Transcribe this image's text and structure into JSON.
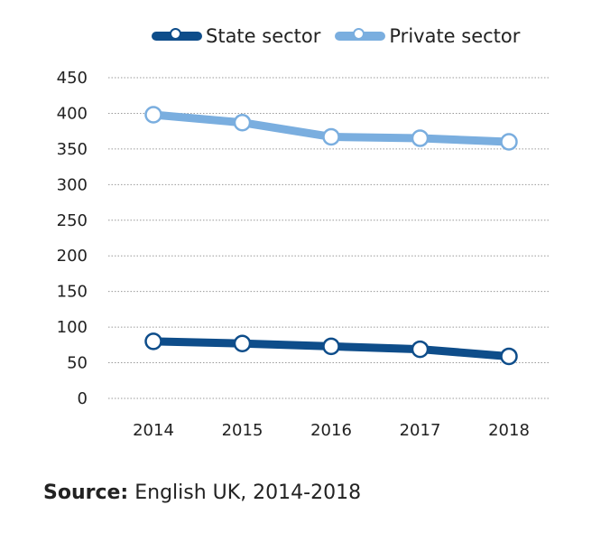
{
  "chart_data": {
    "type": "line",
    "x": [
      "2014",
      "2015",
      "2016",
      "2017",
      "2018"
    ],
    "series": [
      {
        "name": "State sector",
        "color": "#0e4d8a",
        "values": [
          80,
          77,
          73,
          69,
          59
        ]
      },
      {
        "name": "Private sector",
        "color": "#7aaedf",
        "values": [
          398,
          387,
          367,
          365,
          360
        ]
      }
    ],
    "yticks": [
      "450",
      "400",
      "350",
      "300",
      "250",
      "200",
      "150",
      "100",
      "50",
      "0"
    ],
    "ylim": [
      0,
      450
    ],
    "grid": true,
    "legend_position": "top"
  },
  "source": {
    "label": "Source:",
    "text": "English UK, 2014-2018"
  }
}
